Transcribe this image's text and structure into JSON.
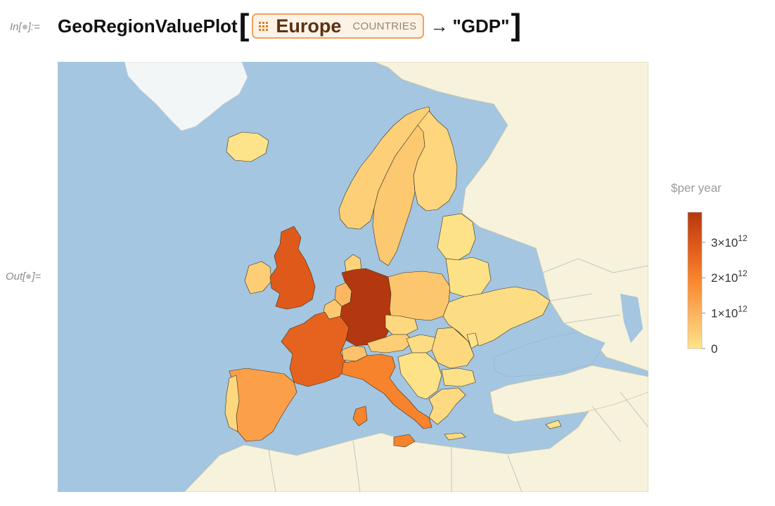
{
  "cell": {
    "in_label_prefix": "In[",
    "in_label_suffix": "]:=",
    "out_label_prefix": "Out[",
    "out_label_suffix": "]=",
    "function_name": "GeoRegionValuePlot",
    "entity_name": "Europe",
    "entity_type": "COUNTRIES",
    "arrow": "→",
    "property": "\"GDP\""
  },
  "legend": {
    "title": "$per year",
    "ticks": [
      {
        "value": 0,
        "label": "0"
      },
      {
        "value": 1000000000000,
        "label": "1×10",
        "exp": "12"
      },
      {
        "value": 2000000000000,
        "label": "2×10",
        "exp": "12"
      },
      {
        "value": 3000000000000,
        "label": "3×10",
        "exp": "12"
      }
    ],
    "max_value": 3850000000000,
    "colors": [
      "#fde48a",
      "#fcb45f",
      "#f9862d",
      "#e05a1a",
      "#b3380f"
    ]
  },
  "map_colors": {
    "sea": "#a4c6e0",
    "land": "#f6f2dc",
    "greenland": "#f3f6f7",
    "border": "#b8b8b8",
    "region_stroke": "#3b2d1d"
  },
  "regions": [
    {
      "name": "Iceland",
      "value": 0.03
    },
    {
      "name": "Norway",
      "value": 0.4
    },
    {
      "name": "Sweden",
      "value": 0.55
    },
    {
      "name": "Finland",
      "value": 0.28
    },
    {
      "name": "Ireland",
      "value": 0.45
    },
    {
      "name": "United Kingdom",
      "value": 2.9
    },
    {
      "name": "France",
      "value": 2.7
    },
    {
      "name": "Spain",
      "value": 1.4
    },
    {
      "name": "Portugal",
      "value": 0.24
    },
    {
      "name": "Germany",
      "value": 3.85
    },
    {
      "name": "Netherlands",
      "value": 0.9
    },
    {
      "name": "Belgium",
      "value": 0.55
    },
    {
      "name": "Switzerland",
      "value": 0.7
    },
    {
      "name": "Austria",
      "value": 0.45
    },
    {
      "name": "Italy",
      "value": 2.0
    },
    {
      "name": "Poland",
      "value": 0.6
    },
    {
      "name": "Czechia",
      "value": 0.25
    },
    {
      "name": "Denmark",
      "value": 0.35
    },
    {
      "name": "Baltics",
      "value": 0.05
    },
    {
      "name": "Belarus",
      "value": 0.06
    },
    {
      "name": "Ukraine",
      "value": 0.15
    },
    {
      "name": "Romania",
      "value": 0.25
    },
    {
      "name": "Hungary",
      "value": 0.15
    },
    {
      "name": "Balkans",
      "value": 0.05
    },
    {
      "name": "Greece",
      "value": 0.2
    },
    {
      "name": "Bulgaria",
      "value": 0.07
    },
    {
      "name": "Moldova",
      "value": 0.02
    }
  ]
}
